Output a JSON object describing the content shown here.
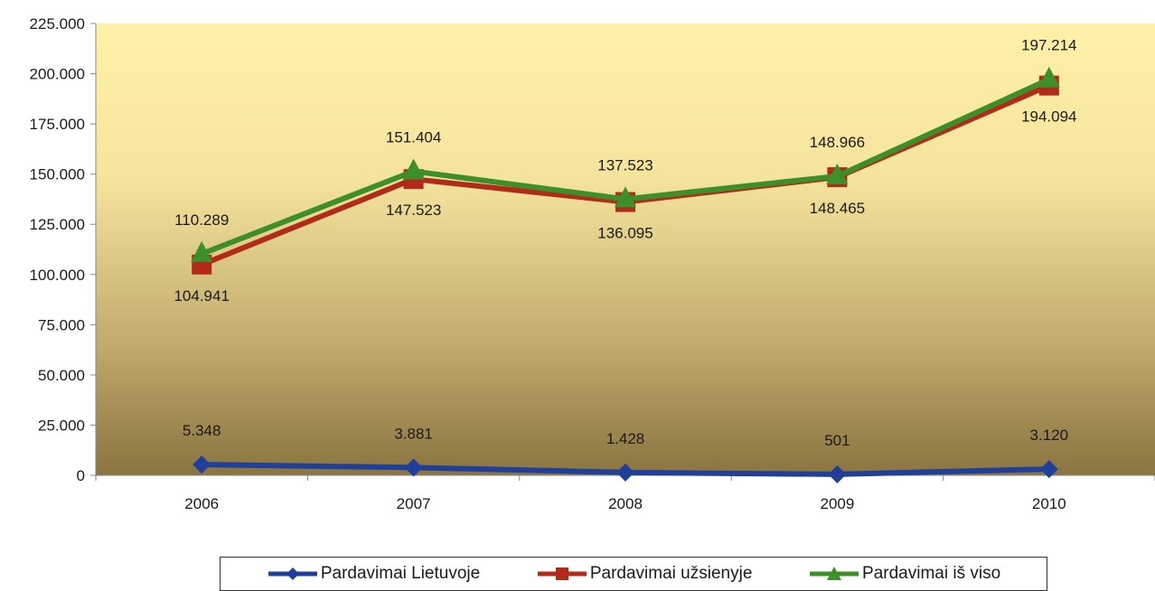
{
  "chart_data": {
    "type": "line",
    "categories": [
      "2006",
      "2007",
      "2008",
      "2009",
      "2010"
    ],
    "y_ticks": [
      "0",
      "25.000",
      "50.000",
      "75.000",
      "100.000",
      "125.000",
      "150.000",
      "175.000",
      "200.000",
      "225.000"
    ],
    "ylim": [
      0,
      225000
    ],
    "grid": false,
    "legend_position": "bottom",
    "plot_background": "gradient",
    "series": [
      {
        "name": "Pardavimai Lietuvoje",
        "color": "#1f3f9a",
        "marker": "diamond",
        "values": [
          5348,
          3881,
          1428,
          501,
          3120
        ],
        "labels": [
          "5.348",
          "3.881",
          "1.428",
          "501",
          "3.120"
        ]
      },
      {
        "name": "Pardavimai užsienyje",
        "color": "#b22a1a",
        "marker": "square",
        "values": [
          104941,
          147523,
          136095,
          148465,
          194094
        ],
        "labels": [
          "104.941",
          "147.523",
          "136.095",
          "148.465",
          "194.094"
        ]
      },
      {
        "name": "Pardavimai iš viso",
        "color": "#3d8f2a",
        "marker": "triangle",
        "values": [
          110289,
          151404,
          137523,
          148966,
          197214
        ],
        "labels": [
          "110.289",
          "151.404",
          "137.523",
          "148.966",
          "197.214"
        ]
      }
    ]
  }
}
